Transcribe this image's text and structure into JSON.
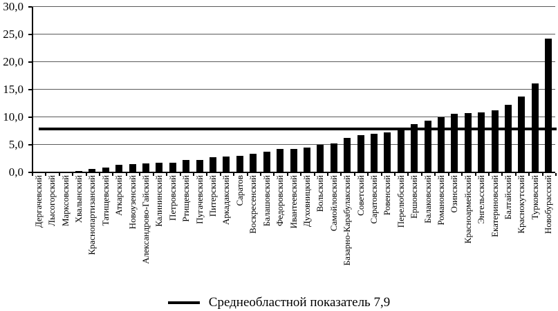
{
  "chart_data": {
    "type": "bar",
    "title": "",
    "xlabel": "",
    "ylabel": "",
    "categories": [
      "Дергачевский",
      "Лысогорский",
      "Марксовский",
      "Хвалынский",
      "Краснопартизанский",
      "Татищевский",
      "Аткарский",
      "Новоузенский",
      "Александрово-Гайский",
      "Калининский",
      "Петровский",
      "Ртищевский",
      "Пугачевский",
      "Питерский",
      "Аркадакский",
      "Саратов",
      "Воскресенский",
      "Балашовский",
      "Федоровский",
      "Ивантеевский",
      "Духовницкий",
      "Вольский",
      "Самойловский",
      "Базарно-Карабулакский",
      "Советский",
      "Саратовский",
      "Ровенский",
      "Перелюбский",
      "Ершовский",
      "Балаковский",
      "Романовский",
      "Озинский",
      "Красноармейский",
      "Энгельсский",
      "Екатериновский",
      "Балтайский",
      "Краснокутский",
      "Турковский",
      "Новобурасский"
    ],
    "values": [
      0,
      0,
      0,
      0.3,
      0.6,
      0.9,
      1.4,
      1.5,
      1.6,
      1.8,
      1.8,
      2.2,
      2.2,
      2.7,
      2.9,
      3.0,
      3.4,
      3.7,
      4.2,
      4.2,
      4.5,
      5.0,
      5.3,
      6.3,
      6.8,
      7.0,
      7.2,
      8.0,
      8.8,
      9.4,
      10.0,
      10.6,
      10.8,
      10.9,
      11.3,
      12.3,
      13.7,
      16.1,
      24.2
    ],
    "bar_color": "#000000",
    "ylim": [
      0,
      30
    ],
    "ytick_values": [
      0,
      5,
      10,
      15,
      20,
      25,
      30
    ],
    "ytick_labels": [
      "0,0",
      "5,0",
      "10,0",
      "15,0",
      "20,0",
      "25,0",
      "30,0"
    ],
    "grid": true,
    "legend_position": "bottom",
    "reference_line": {
      "value": 7.9,
      "label": "Среднеобластной показатель 7,9",
      "color": "#000000"
    }
  }
}
